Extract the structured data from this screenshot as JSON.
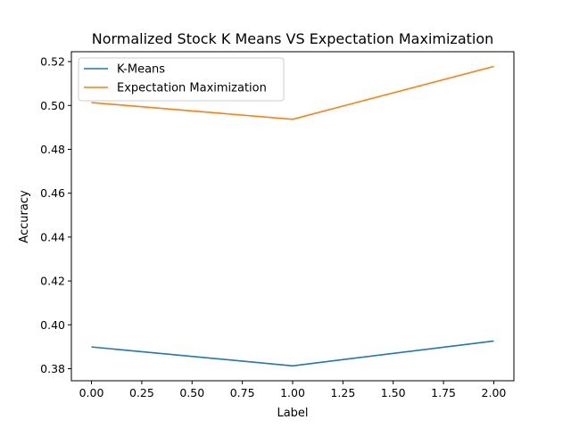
{
  "chart_data": {
    "type": "line",
    "title": "Normalized Stock K Means VS Expectation Maximization",
    "xlabel": "Label",
    "ylabel": "Accuracy",
    "x": [
      0.0,
      1.0,
      2.0
    ],
    "series": [
      {
        "name": "K-Means",
        "values": [
          0.3899,
          0.3813,
          0.3926
        ],
        "color": "#1f77b4"
      },
      {
        "name": "Expectation Maximization",
        "values": [
          0.5013,
          0.4937,
          0.5178
        ],
        "color": "#ff7f0e"
      }
    ],
    "xlim": [
      -0.1,
      2.1
    ],
    "ylim": [
      0.3745,
      0.5245
    ],
    "xticks": [
      0.0,
      0.25,
      0.5,
      0.75,
      1.0,
      1.25,
      1.5,
      1.75,
      2.0
    ],
    "xtick_labels": [
      "0.00",
      "0.25",
      "0.50",
      "0.75",
      "1.00",
      "1.25",
      "1.50",
      "1.75",
      "2.00"
    ],
    "yticks": [
      0.38,
      0.4,
      0.42,
      0.44,
      0.46,
      0.48,
      0.5,
      0.52
    ],
    "ytick_labels": [
      "0.38",
      "0.40",
      "0.42",
      "0.44",
      "0.46",
      "0.48",
      "0.50",
      "0.52"
    ],
    "grid": false,
    "legend": "top-left"
  }
}
